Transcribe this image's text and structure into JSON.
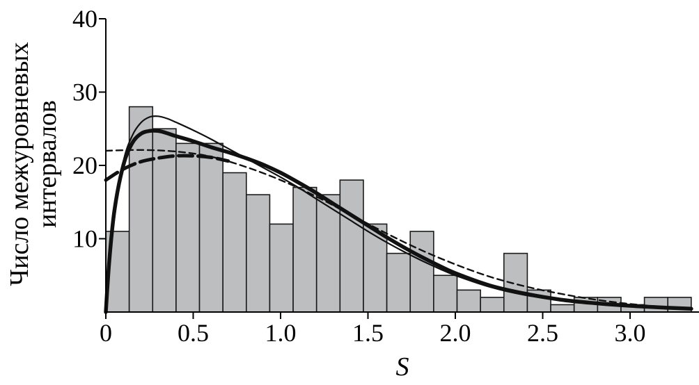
{
  "chart_data": {
    "type": "bar",
    "title": "",
    "xlabel": "S",
    "ylabel": [
      "Число межуровневых",
      "интервалов"
    ],
    "xlim": [
      0,
      3.4
    ],
    "ylim": [
      0,
      40
    ],
    "xticks": [
      0,
      0.5,
      1.0,
      1.5,
      2.0,
      2.5,
      3.0
    ],
    "xtick_labels": [
      "0",
      "0.5",
      "1.0",
      "1.5",
      "2.0",
      "2.5",
      "3.0"
    ],
    "yticks": [
      10,
      20,
      30,
      40
    ],
    "ytick_labels": [
      "10",
      "20",
      "30",
      "40"
    ],
    "grid": false,
    "legend": "none",
    "bin_width": 0.134,
    "bins": [
      {
        "x0": 0.0,
        "x1": 0.134,
        "count": 11
      },
      {
        "x0": 0.134,
        "x1": 0.268,
        "count": 28
      },
      {
        "x0": 0.268,
        "x1": 0.402,
        "count": 25
      },
      {
        "x0": 0.402,
        "x1": 0.536,
        "count": 23
      },
      {
        "x0": 0.536,
        "x1": 0.67,
        "count": 23
      },
      {
        "x0": 0.67,
        "x1": 0.804,
        "count": 19
      },
      {
        "x0": 0.804,
        "x1": 0.938,
        "count": 16
      },
      {
        "x0": 0.938,
        "x1": 1.072,
        "count": 12
      },
      {
        "x0": 1.072,
        "x1": 1.206,
        "count": 17
      },
      {
        "x0": 1.206,
        "x1": 1.34,
        "count": 16
      },
      {
        "x0": 1.34,
        "x1": 1.474,
        "count": 18
      },
      {
        "x0": 1.474,
        "x1": 1.608,
        "count": 12
      },
      {
        "x0": 1.608,
        "x1": 1.742,
        "count": 8
      },
      {
        "x0": 1.742,
        "x1": 1.876,
        "count": 11
      },
      {
        "x0": 1.876,
        "x1": 2.01,
        "count": 5
      },
      {
        "x0": 2.01,
        "x1": 2.144,
        "count": 3
      },
      {
        "x0": 2.144,
        "x1": 2.278,
        "count": 2
      },
      {
        "x0": 2.278,
        "x1": 2.412,
        "count": 8
      },
      {
        "x0": 2.412,
        "x1": 2.546,
        "count": 3
      },
      {
        "x0": 2.546,
        "x1": 2.68,
        "count": 1
      },
      {
        "x0": 2.68,
        "x1": 2.814,
        "count": 2
      },
      {
        "x0": 2.814,
        "x1": 2.948,
        "count": 2
      },
      {
        "x0": 2.948,
        "x1": 3.082,
        "count": 1
      },
      {
        "x0": 3.082,
        "x1": 3.216,
        "count": 2
      },
      {
        "x0": 3.216,
        "x1": 3.35,
        "count": 2
      }
    ],
    "series": [
      {
        "style": "thin-solid",
        "x": [
          0,
          0.02,
          0.05,
          0.1,
          0.15,
          0.2,
          0.25,
          0.3,
          0.35,
          0.4,
          0.5,
          0.6,
          0.7,
          0.8,
          0.9,
          1.0,
          1.1,
          1.2,
          1.3,
          1.4,
          1.5,
          1.6,
          1.7,
          1.8,
          1.9,
          2.0,
          2.2,
          2.4,
          2.6,
          2.8,
          3.0,
          3.2,
          3.35
        ],
        "y": [
          0,
          6,
          13,
          20.5,
          24,
          25.8,
          26.6,
          26.7,
          26.4,
          25.9,
          24.8,
          23.6,
          22.3,
          21,
          19.7,
          18.4,
          17,
          15.5,
          14,
          12.5,
          11,
          9.6,
          8.3,
          7.1,
          6,
          5,
          3.4,
          2.3,
          1.6,
          1.1,
          0.8,
          0.55,
          0.4
        ]
      },
      {
        "style": "thick-solid",
        "x": [
          0,
          0.02,
          0.05,
          0.1,
          0.15,
          0.2,
          0.25,
          0.3,
          0.35,
          0.4,
          0.5,
          0.6,
          0.7,
          0.8,
          0.9,
          1.0,
          1.1,
          1.2,
          1.3,
          1.4,
          1.5,
          1.6,
          1.7,
          1.8,
          1.9,
          2.0,
          2.2,
          2.4,
          2.6,
          2.8,
          3.0,
          3.2,
          3.35
        ],
        "y": [
          0,
          7,
          14,
          20,
          23,
          24.3,
          24.7,
          24.7,
          24.4,
          24,
          23.3,
          22.5,
          21.8,
          21,
          20.1,
          19,
          17.7,
          16.3,
          14.8,
          13.3,
          11.8,
          10.3,
          8.9,
          7.6,
          6.4,
          5.3,
          3.6,
          2.5,
          1.7,
          1.2,
          0.85,
          0.6,
          0.45
        ]
      },
      {
        "style": "thin-dashed",
        "x": [
          0,
          0.2,
          0.4,
          0.6,
          0.8,
          1.0,
          1.2,
          1.4,
          1.6,
          1.8,
          2.0,
          2.2,
          2.4,
          2.6,
          2.8,
          3.0,
          3.2,
          3.35
        ],
        "y": [
          22,
          22.1,
          21.9,
          21.2,
          19.8,
          18,
          15.8,
          13.3,
          10.8,
          8.5,
          6.5,
          4.8,
          3.5,
          2.5,
          1.7,
          1.1,
          0.7,
          0.5
        ]
      },
      {
        "style": "thick-dashed",
        "x": [
          0,
          0.1,
          0.2,
          0.3,
          0.4,
          0.5,
          0.6,
          0.7
        ],
        "y": [
          18,
          19.5,
          20.5,
          21,
          21.3,
          21.3,
          21.1,
          20.6
        ]
      }
    ]
  }
}
